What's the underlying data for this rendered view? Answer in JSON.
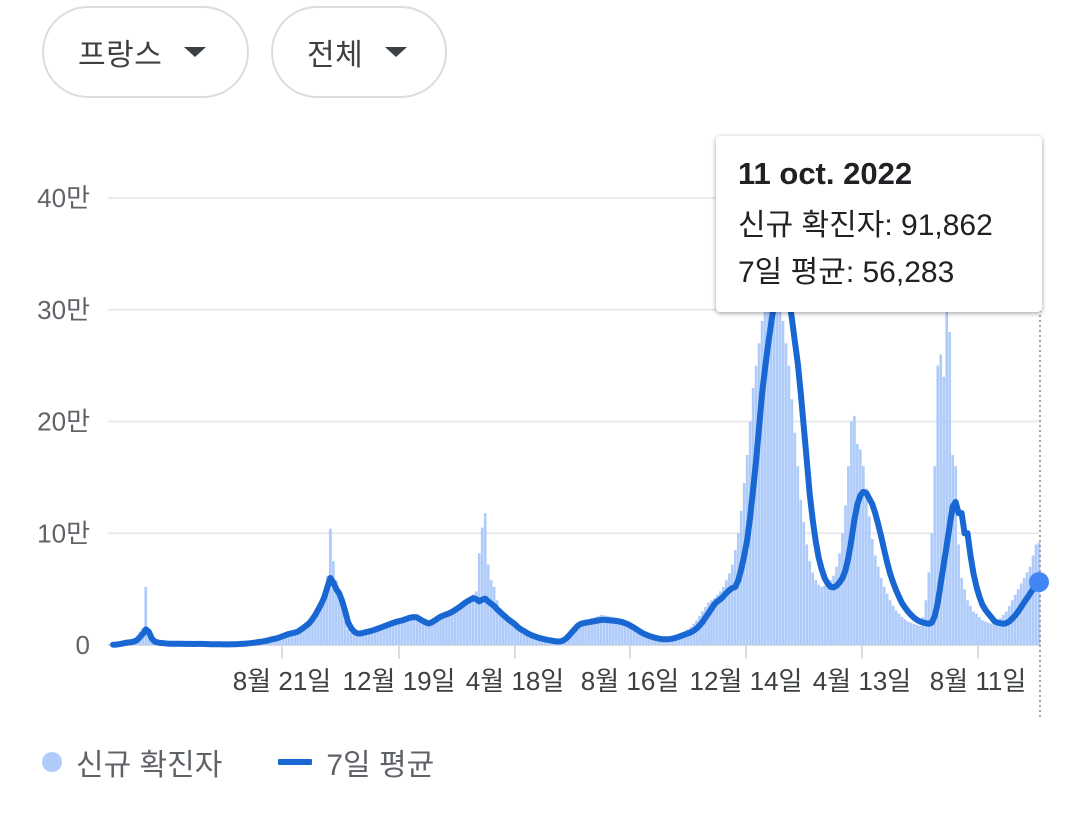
{
  "filters": {
    "country": "프랑스",
    "range": "전체"
  },
  "tooltip": {
    "date": "11 oct. 2022",
    "new_cases_label": "신규 확진자",
    "new_cases_value": "91,862",
    "avg_label": "7일 평균",
    "avg_value": "56,283"
  },
  "legend": {
    "bars": "신규 확진자",
    "line": "7일 평균"
  },
  "colors": {
    "bars": "#aecbfa",
    "line": "#1967d2",
    "highlight": "#4285f4",
    "gridline": "#e8eaed"
  },
  "chart_data": {
    "type": "bar",
    "ylim": [
      0,
      400000
    ],
    "y_ticks": [
      {
        "value": 0,
        "label": "0"
      },
      {
        "value": 100000,
        "label": "10만"
      },
      {
        "value": 200000,
        "label": "20만"
      },
      {
        "value": 300000,
        "label": "30만"
      },
      {
        "value": 400000,
        "label": "40만"
      }
    ],
    "x_ticks": [
      "8월 21일",
      "12월 19일",
      "4월 18일",
      "8월 16일",
      "12월 14일",
      "4월 13일",
      "8월 11일"
    ],
    "grid": true,
    "series": [
      {
        "name": "신규 확진자",
        "type": "bar",
        "values": [
          300,
          500,
          900,
          1800,
          2000,
          1500,
          2500,
          3500,
          5500,
          12000,
          15000,
          52000,
          8000,
          3000,
          2200,
          1800,
          1500,
          1200,
          1000,
          1100,
          900,
          1500,
          1300,
          1000,
          800,
          900,
          1000,
          900,
          1000,
          1200,
          900,
          800,
          700,
          600,
          650,
          700,
          600,
          550,
          500,
          600,
          700,
          800,
          900,
          1000,
          1200,
          1400,
          1800,
          2000,
          2200,
          2600,
          3000,
          3500,
          4000,
          5000,
          5500,
          6000,
          7000,
          8000,
          9000,
          10000,
          10500,
          11000,
          12000,
          14000,
          16000,
          18000,
          20000,
          24000,
          28000,
          33000,
          38000,
          45000,
          62000,
          104000,
          75000,
          58000,
          48000,
          35000,
          22000,
          14000,
          11000,
          9000,
          8500,
          10000,
          11000,
          12000,
          12500,
          13000,
          14000,
          15000,
          16000,
          17000,
          18000,
          19000,
          20000,
          21000,
          21500,
          22000,
          23000,
          24000,
          25000,
          26000,
          25000,
          23000,
          21000,
          19000,
          17000,
          20000,
          22000,
          24000,
          26000,
          27000,
          28000,
          29000,
          30000,
          32000,
          34000,
          36000,
          38000,
          40000,
          42000,
          45000,
          48000,
          82000,
          105000,
          118000,
          72000,
          58000,
          52000,
          40000,
          32000,
          28000,
          25000,
          22000,
          20000,
          18000,
          15000,
          13000,
          12000,
          10000,
          9000,
          8000,
          7000,
          6000,
          5500,
          5000,
          4500,
          4000,
          3500,
          3000,
          3000,
          4000,
          6000,
          9000,
          12000,
          15000,
          18000,
          20000,
          21000,
          22000,
          23000,
          24000,
          25000,
          26000,
          27000,
          26500,
          26000,
          25500,
          25000,
          24500,
          24000,
          23000,
          22000,
          20000,
          18000,
          16000,
          14000,
          12000,
          10000,
          8000,
          7000,
          6000,
          5500,
          5000,
          5000,
          5500,
          6000,
          7000,
          8000,
          9000,
          10000,
          11000,
          12000,
          14000,
          16000,
          19000,
          22000,
          26000,
          30000,
          34000,
          38000,
          40000,
          42000,
          45000,
          48000,
          52000,
          58000,
          64000,
          72000,
          85000,
          100000,
          120000,
          145000,
          170000,
          200000,
          230000,
          250000,
          270000,
          290000,
          310000,
          330000,
          340000,
          345000,
          330000,
          310000,
          290000,
          270000,
          250000,
          220000,
          190000,
          160000,
          130000,
          110000,
          90000,
          75000,
          65000,
          58000,
          54000,
          52000,
          53000,
          55000,
          58000,
          62000,
          70000,
          82000,
          100000,
          125000,
          160000,
          200000,
          205000,
          180000,
          175000,
          160000,
          140000,
          115000,
          95000,
          80000,
          70000,
          60000,
          52000,
          46000,
          40000,
          35000,
          31000,
          28000,
          25000,
          23000,
          21000,
          20000,
          19000,
          18000,
          17000,
          25000,
          40000,
          65000,
          100000,
          160000,
          250000,
          260000,
          240000,
          300000,
          280000,
          170000,
          160000,
          90000,
          60000,
          50000,
          40000,
          35000,
          30000,
          28000,
          25000,
          22000,
          21000,
          20000,
          19000,
          20000,
          22000,
          24000,
          27000,
          30000,
          35000,
          40000,
          45000,
          50000,
          55000,
          60000,
          65000,
          70000,
          80000,
          90000,
          91862
        ]
      },
      {
        "name": "7일 평균",
        "type": "line",
        "values": [
          300,
          400,
          700,
          1200,
          1800,
          2200,
          2500,
          3000,
          4200,
          7000,
          10000,
          14000,
          12000,
          6000,
          3000,
          2300,
          1900,
          1600,
          1300,
          1200,
          1100,
          1200,
          1200,
          1100,
          1000,
          950,
          950,
          920,
          950,
          1000,
          950,
          880,
          790,
          700,
          660,
          650,
          620,
          580,
          560,
          580,
          650,
          750,
          850,
          980,
          1150,
          1350,
          1650,
          1950,
          2250,
          2650,
          3050,
          3500,
          4000,
          4800,
          5450,
          6000,
          6900,
          7900,
          8900,
          9850,
          10450,
          11000,
          11900,
          13600,
          15500,
          17500,
          19800,
          23300,
          27300,
          32000,
          37000,
          43000,
          52000,
          60000,
          56000,
          50000,
          46000,
          39000,
          30000,
          20000,
          15000,
          12000,
          10500,
          10200,
          10800,
          11500,
          12200,
          12800,
          13700,
          14700,
          15700,
          16700,
          17700,
          18700,
          19700,
          20600,
          21300,
          21900,
          22800,
          23800,
          24600,
          25000,
          24800,
          23200,
          21700,
          20300,
          19200,
          20200,
          21800,
          23600,
          25300,
          26500,
          27500,
          28500,
          29800,
          31500,
          33300,
          35200,
          37200,
          39000,
          40500,
          42000,
          41000,
          39000,
          40500,
          41500,
          39000,
          37000,
          35000,
          32000,
          29500,
          27000,
          24800,
          22500,
          20500,
          18500,
          16000,
          14000,
          12500,
          10800,
          9500,
          8300,
          7300,
          6400,
          5700,
          5100,
          4600,
          4100,
          3600,
          3200,
          3100,
          3800,
          5500,
          8000,
          11000,
          14000,
          17000,
          18800,
          19500,
          20000,
          20500,
          21000,
          21500,
          22000,
          22500,
          22500,
          22300,
          22000,
          21800,
          21500,
          21000,
          20500,
          19500,
          18500,
          17000,
          15500,
          13800,
          12000,
          10500,
          9200,
          8200,
          7300,
          6500,
          5900,
          5400,
          5100,
          5100,
          5300,
          5700,
          6400,
          7300,
          8300,
          9300,
          10300,
          11300,
          12800,
          14800,
          17500,
          20500,
          24500,
          28500,
          32500,
          36500,
          39000,
          41000,
          43500,
          46500,
          49000,
          51000,
          52000,
          58000,
          68000,
          80000,
          94000,
          115000,
          140000,
          165000,
          195000,
          225000,
          248000,
          268000,
          287000,
          305000,
          322000,
          333000,
          338000,
          328000,
          310000,
          292000,
          272000,
          252000,
          225000,
          195000,
          165000,
          135000,
          112000,
          93000,
          78000,
          68000,
          60000,
          55000,
          52000,
          51500,
          53000,
          56000,
          60000,
          67000,
          78000,
          94000,
          112000,
          126000,
          134000,
          137000,
          136000,
          131000,
          126000,
          118000,
          108000,
          97000,
          85000,
          74000,
          64000,
          56000,
          49000,
          43000,
          37500,
          33500,
          30000,
          27000,
          24500,
          22500,
          21000,
          20000,
          19500,
          19000,
          20000,
          26000,
          38000,
          55000,
          72000,
          89000,
          107000,
          124000,
          128000,
          118000,
          118000,
          100000,
          100000,
          80000,
          64000,
          52000,
          43000,
          36000,
          31500,
          28000,
          24800,
          21500,
          20000,
          19500,
          19000,
          19500,
          21000,
          23500,
          26500,
          30000,
          34000,
          38000,
          42000,
          46000,
          50000,
          53000,
          56283
        ]
      }
    ],
    "highlight": {
      "date": "11 oct. 2022",
      "new_cases": 91862,
      "avg": 56283
    }
  }
}
